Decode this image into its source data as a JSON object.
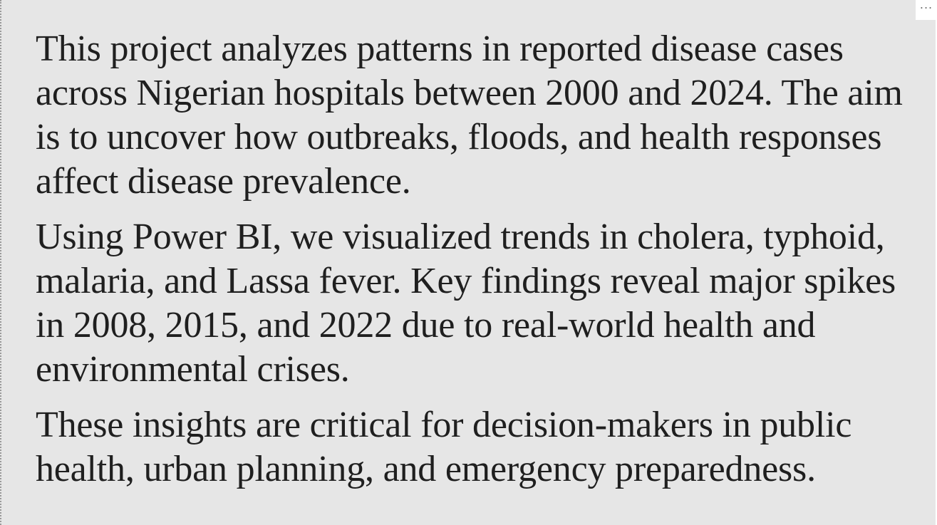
{
  "textbox": {
    "paragraphs": [
      "This project analyzes patterns in reported disease cases across Nigerian hospitals between 2000 and 2024. The aim is to uncover how outbreaks, floods, and health responses affect disease prevalence.",
      "Using Power BI, we visualized trends in cholera, typhoid, malaria, and Lassa fever. Key findings reveal major spikes in 2008, 2015, and 2022 due to real-world health and environmental crises.",
      "These insights are critical for decision-makers in public health, urban planning, and emergency preparedness."
    ]
  },
  "more_options": {
    "label": "...",
    "icon": "more-options-icon"
  },
  "colors": {
    "background": "#e6e6e6",
    "text": "#1f1f1f",
    "border": "#9a9a9a"
  }
}
